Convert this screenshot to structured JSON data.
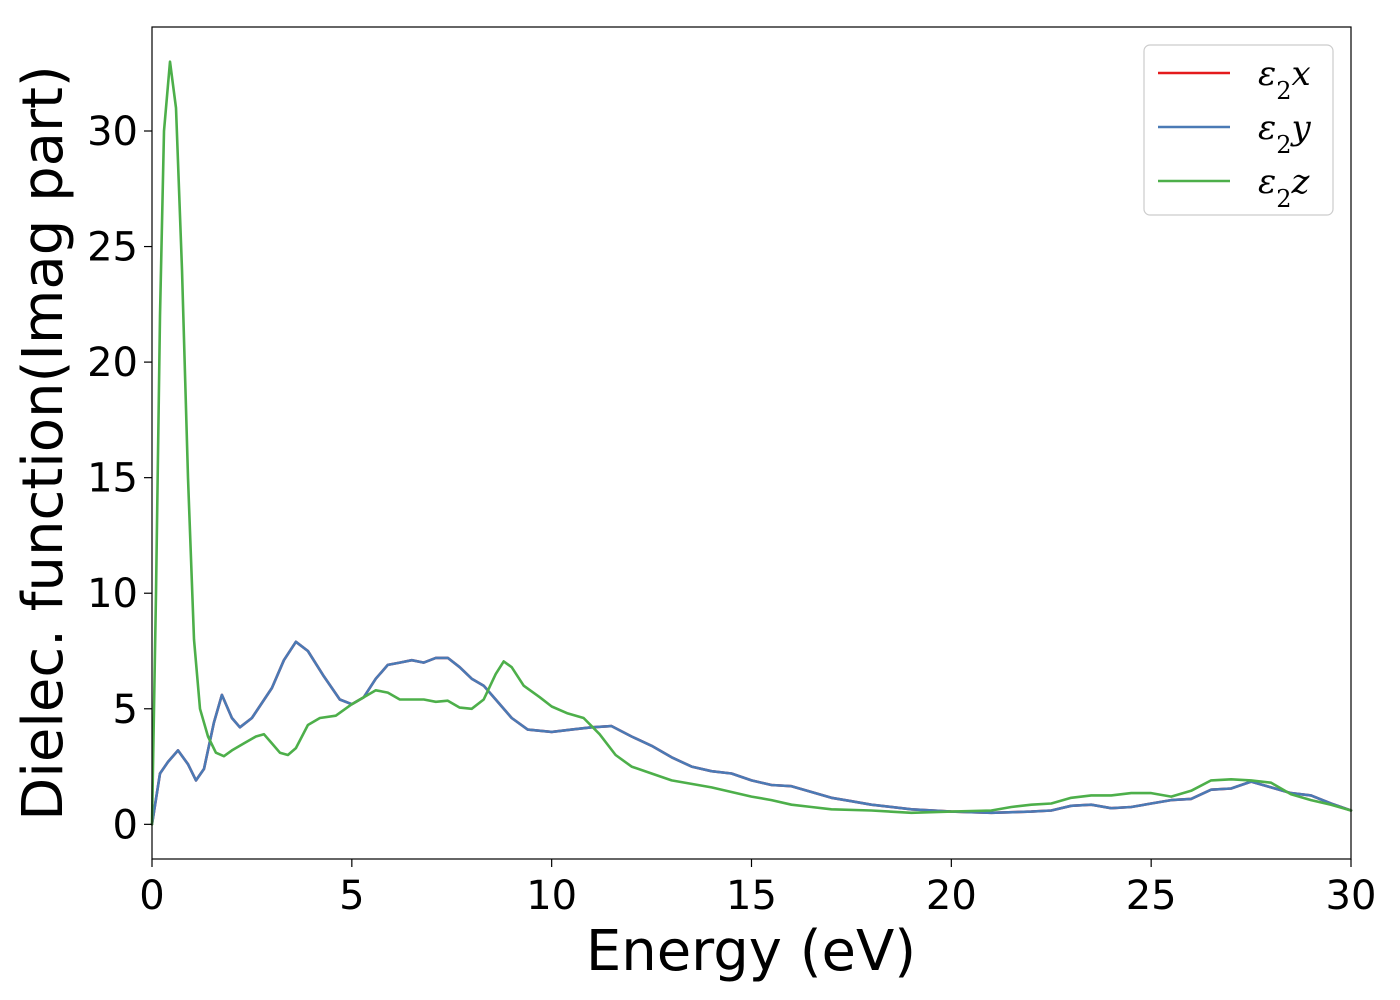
{
  "chart_data": {
    "type": "line",
    "title": "",
    "xlabel": "Energy (eV)",
    "ylabel": "Dielec. function(Imag part)",
    "xlim": [
      0,
      30
    ],
    "ylim": [
      -1.5,
      34.5
    ],
    "xticks": [
      0,
      5,
      10,
      15,
      20,
      25,
      30
    ],
    "yticks": [
      0,
      5,
      10,
      15,
      20,
      25,
      30
    ],
    "grid": false,
    "legend_position": "top-right",
    "series": [
      {
        "name": "ε2x",
        "legend_base": "ε",
        "legend_sub": "2",
        "legend_suffix": "x",
        "color": "#e41a1c",
        "points": [
          [
            0,
            0
          ],
          [
            0.2,
            2.2
          ],
          [
            0.4,
            2.7
          ],
          [
            0.65,
            3.2
          ],
          [
            0.9,
            2.6
          ],
          [
            1.1,
            1.9
          ],
          [
            1.3,
            2.4
          ],
          [
            1.55,
            4.4
          ],
          [
            1.75,
            5.6
          ],
          [
            2.0,
            4.6
          ],
          [
            2.2,
            4.2
          ],
          [
            2.5,
            4.6
          ],
          [
            3.0,
            5.9
          ],
          [
            3.3,
            7.1
          ],
          [
            3.6,
            7.9
          ],
          [
            3.9,
            7.5
          ],
          [
            4.3,
            6.4
          ],
          [
            4.7,
            5.4
          ],
          [
            5.0,
            5.2
          ],
          [
            5.3,
            5.5
          ],
          [
            5.6,
            6.3
          ],
          [
            5.9,
            6.9
          ],
          [
            6.2,
            7.0
          ],
          [
            6.5,
            7.1
          ],
          [
            6.8,
            7.0
          ],
          [
            7.1,
            7.2
          ],
          [
            7.4,
            7.2
          ],
          [
            7.7,
            6.8
          ],
          [
            8.0,
            6.3
          ],
          [
            8.3,
            6.0
          ],
          [
            8.6,
            5.4
          ],
          [
            9.0,
            4.6
          ],
          [
            9.4,
            4.1
          ],
          [
            10.0,
            4.0
          ],
          [
            10.5,
            4.1
          ],
          [
            11.0,
            4.2
          ],
          [
            11.5,
            4.25
          ],
          [
            12.0,
            3.8
          ],
          [
            12.5,
            3.4
          ],
          [
            13.0,
            2.9
          ],
          [
            13.5,
            2.5
          ],
          [
            14.0,
            2.3
          ],
          [
            14.5,
            2.2
          ],
          [
            15.0,
            1.9
          ],
          [
            15.5,
            1.7
          ],
          [
            16.0,
            1.65
          ],
          [
            16.5,
            1.4
          ],
          [
            17.0,
            1.15
          ],
          [
            17.5,
            1.0
          ],
          [
            18.0,
            0.85
          ],
          [
            19.0,
            0.65
          ],
          [
            20.0,
            0.55
          ],
          [
            21.0,
            0.5
          ],
          [
            22.0,
            0.55
          ],
          [
            22.5,
            0.6
          ],
          [
            23.0,
            0.8
          ],
          [
            23.5,
            0.85
          ],
          [
            24.0,
            0.7
          ],
          [
            24.5,
            0.75
          ],
          [
            25.0,
            0.9
          ],
          [
            25.5,
            1.05
          ],
          [
            26.0,
            1.1
          ],
          [
            26.5,
            1.5
          ],
          [
            27.0,
            1.55
          ],
          [
            27.5,
            1.85
          ],
          [
            28.0,
            1.6
          ],
          [
            28.5,
            1.35
          ],
          [
            29.0,
            1.25
          ],
          [
            29.5,
            0.9
          ],
          [
            30.0,
            0.6
          ]
        ]
      },
      {
        "name": "ε2y",
        "legend_base": "ε",
        "legend_sub": "2",
        "legend_suffix": "y",
        "color": "#4a7ab5",
        "points": [
          [
            0,
            0
          ],
          [
            0.2,
            2.2
          ],
          [
            0.4,
            2.7
          ],
          [
            0.65,
            3.2
          ],
          [
            0.9,
            2.6
          ],
          [
            1.1,
            1.9
          ],
          [
            1.3,
            2.4
          ],
          [
            1.55,
            4.4
          ],
          [
            1.75,
            5.6
          ],
          [
            2.0,
            4.6
          ],
          [
            2.2,
            4.2
          ],
          [
            2.5,
            4.6
          ],
          [
            3.0,
            5.9
          ],
          [
            3.3,
            7.1
          ],
          [
            3.6,
            7.9
          ],
          [
            3.9,
            7.5
          ],
          [
            4.3,
            6.4
          ],
          [
            4.7,
            5.4
          ],
          [
            5.0,
            5.2
          ],
          [
            5.3,
            5.5
          ],
          [
            5.6,
            6.3
          ],
          [
            5.9,
            6.9
          ],
          [
            6.2,
            7.0
          ],
          [
            6.5,
            7.1
          ],
          [
            6.8,
            7.0
          ],
          [
            7.1,
            7.2
          ],
          [
            7.4,
            7.2
          ],
          [
            7.7,
            6.8
          ],
          [
            8.0,
            6.3
          ],
          [
            8.3,
            6.0
          ],
          [
            8.6,
            5.4
          ],
          [
            9.0,
            4.6
          ],
          [
            9.4,
            4.1
          ],
          [
            10.0,
            4.0
          ],
          [
            10.5,
            4.1
          ],
          [
            11.0,
            4.2
          ],
          [
            11.5,
            4.25
          ],
          [
            12.0,
            3.8
          ],
          [
            12.5,
            3.4
          ],
          [
            13.0,
            2.9
          ],
          [
            13.5,
            2.5
          ],
          [
            14.0,
            2.3
          ],
          [
            14.5,
            2.2
          ],
          [
            15.0,
            1.9
          ],
          [
            15.5,
            1.7
          ],
          [
            16.0,
            1.65
          ],
          [
            16.5,
            1.4
          ],
          [
            17.0,
            1.15
          ],
          [
            17.5,
            1.0
          ],
          [
            18.0,
            0.85
          ],
          [
            19.0,
            0.65
          ],
          [
            20.0,
            0.55
          ],
          [
            21.0,
            0.5
          ],
          [
            22.0,
            0.55
          ],
          [
            22.5,
            0.6
          ],
          [
            23.0,
            0.8
          ],
          [
            23.5,
            0.85
          ],
          [
            24.0,
            0.7
          ],
          [
            24.5,
            0.75
          ],
          [
            25.0,
            0.9
          ],
          [
            25.5,
            1.05
          ],
          [
            26.0,
            1.1
          ],
          [
            26.5,
            1.5
          ],
          [
            27.0,
            1.55
          ],
          [
            27.5,
            1.85
          ],
          [
            28.0,
            1.6
          ],
          [
            28.5,
            1.35
          ],
          [
            29.0,
            1.25
          ],
          [
            29.5,
            0.9
          ],
          [
            30.0,
            0.6
          ]
        ]
      },
      {
        "name": "ε2z",
        "legend_base": "ε",
        "legend_sub": "2",
        "legend_suffix": "z",
        "color": "#4daf4a",
        "points": [
          [
            0,
            0
          ],
          [
            0.1,
            10
          ],
          [
            0.2,
            22
          ],
          [
            0.3,
            30
          ],
          [
            0.45,
            33
          ],
          [
            0.6,
            31
          ],
          [
            0.75,
            24
          ],
          [
            0.9,
            15
          ],
          [
            1.05,
            8
          ],
          [
            1.2,
            5
          ],
          [
            1.4,
            3.8
          ],
          [
            1.6,
            3.1
          ],
          [
            1.8,
            2.95
          ],
          [
            2.0,
            3.2
          ],
          [
            2.3,
            3.5
          ],
          [
            2.6,
            3.8
          ],
          [
            2.8,
            3.9
          ],
          [
            3.0,
            3.5
          ],
          [
            3.2,
            3.1
          ],
          [
            3.4,
            3.0
          ],
          [
            3.6,
            3.3
          ],
          [
            3.9,
            4.3
          ],
          [
            4.2,
            4.6
          ],
          [
            4.6,
            4.7
          ],
          [
            5.0,
            5.2
          ],
          [
            5.3,
            5.5
          ],
          [
            5.6,
            5.8
          ],
          [
            5.9,
            5.7
          ],
          [
            6.2,
            5.4
          ],
          [
            6.5,
            5.4
          ],
          [
            6.8,
            5.4
          ],
          [
            7.1,
            5.3
          ],
          [
            7.4,
            5.35
          ],
          [
            7.7,
            5.05
          ],
          [
            8.0,
            5.0
          ],
          [
            8.3,
            5.4
          ],
          [
            8.6,
            6.5
          ],
          [
            8.8,
            7.05
          ],
          [
            9.0,
            6.8
          ],
          [
            9.3,
            6.0
          ],
          [
            9.7,
            5.5
          ],
          [
            10.0,
            5.1
          ],
          [
            10.4,
            4.8
          ],
          [
            10.8,
            4.6
          ],
          [
            11.2,
            3.9
          ],
          [
            11.6,
            3.0
          ],
          [
            12.0,
            2.5
          ],
          [
            12.5,
            2.2
          ],
          [
            13.0,
            1.9
          ],
          [
            13.5,
            1.75
          ],
          [
            14.0,
            1.6
          ],
          [
            14.5,
            1.4
          ],
          [
            15.0,
            1.2
          ],
          [
            15.5,
            1.05
          ],
          [
            16.0,
            0.85
          ],
          [
            16.5,
            0.75
          ],
          [
            17.0,
            0.65
          ],
          [
            18.0,
            0.6
          ],
          [
            19.0,
            0.5
          ],
          [
            20.0,
            0.55
          ],
          [
            21.0,
            0.6
          ],
          [
            21.5,
            0.75
          ],
          [
            22.0,
            0.85
          ],
          [
            22.5,
            0.9
          ],
          [
            23.0,
            1.15
          ],
          [
            23.5,
            1.25
          ],
          [
            24.0,
            1.25
          ],
          [
            24.5,
            1.35
          ],
          [
            25.0,
            1.35
          ],
          [
            25.5,
            1.2
          ],
          [
            26.0,
            1.45
          ],
          [
            26.5,
            1.9
          ],
          [
            27.0,
            1.95
          ],
          [
            27.5,
            1.9
          ],
          [
            28.0,
            1.8
          ],
          [
            28.5,
            1.3
          ],
          [
            29.0,
            1.05
          ],
          [
            29.5,
            0.85
          ],
          [
            30.0,
            0.6
          ]
        ]
      }
    ]
  }
}
